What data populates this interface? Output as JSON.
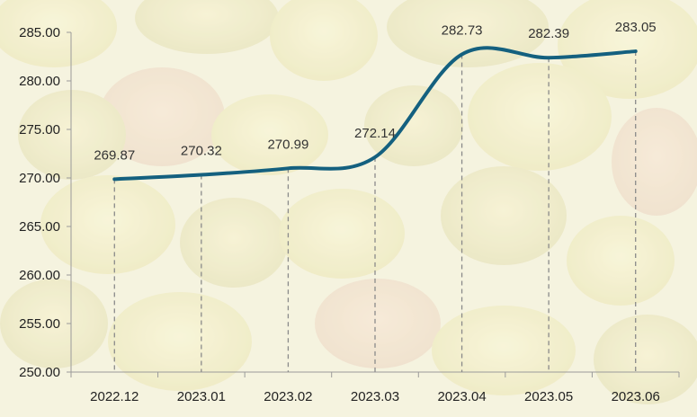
{
  "chart_data": {
    "type": "line",
    "title": "",
    "xlabel": "",
    "ylabel": "",
    "categories": [
      "2022.12",
      "2023.01",
      "2023.02",
      "2023.03",
      "2023.04",
      "2023.05",
      "2023.06"
    ],
    "series": [
      {
        "values": [
          269.87,
          270.32,
          270.99,
          272.14,
          282.73,
          282.39,
          283.05
        ],
        "value_labels": [
          "269.87",
          "270.32",
          "270.99",
          "272.14",
          "282.73",
          "282.39",
          "283.05"
        ]
      }
    ],
    "ylim": [
      250,
      285
    ],
    "yticks": [
      250,
      255,
      260,
      265,
      270,
      275,
      280,
      285
    ],
    "ytick_labels": [
      "250.00",
      "255.00",
      "260.00",
      "265.00",
      "270.00",
      "275.00",
      "280.00",
      "285.00"
    ],
    "grid": false,
    "drop_lines": true,
    "smooth": true,
    "legend": "none",
    "colors": {
      "line": "#14607f",
      "drop_line": "#8a8a8a",
      "axis": "#9a9a9a"
    },
    "background": "photo of yellow-green fruit (blurred)"
  }
}
